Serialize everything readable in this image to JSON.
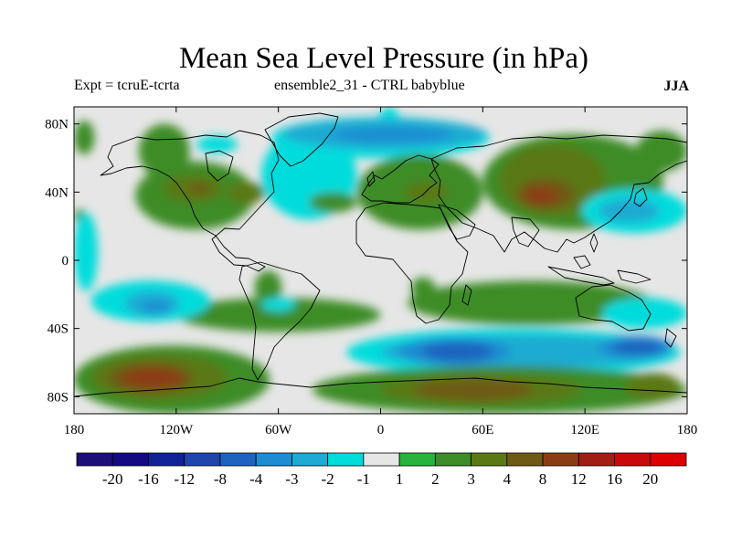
{
  "chart_data": {
    "type": "heatmap",
    "title": "Mean Sea Level Pressure (in hPa)",
    "experiment_label": "Expt = tcruE-tcrta",
    "ensemble_label": "ensemble2_31 - CTRL babyblue",
    "season": "JJA",
    "x_ticks": [
      {
        "lon": -180,
        "label": "180"
      },
      {
        "lon": -120,
        "label": "120W"
      },
      {
        "lon": -60,
        "label": "60W"
      },
      {
        "lon": 0,
        "label": "0"
      },
      {
        "lon": 60,
        "label": "60E"
      },
      {
        "lon": 120,
        "label": "120E"
      },
      {
        "lon": 180,
        "label": "180"
      }
    ],
    "y_ticks": [
      {
        "lat": 80,
        "label": "80N"
      },
      {
        "lat": 40,
        "label": "40N"
      },
      {
        "lat": 0,
        "label": "0"
      },
      {
        "lat": -40,
        "label": "40S"
      },
      {
        "lat": -80,
        "label": "80S"
      }
    ],
    "xlim": [
      -180,
      180
    ],
    "ylim": [
      -90,
      90
    ],
    "colorbar": {
      "labels": [
        "-20",
        "-16",
        "-12",
        "-8",
        "-4",
        "-3",
        "-2",
        "-1",
        "1",
        "2",
        "3",
        "4",
        "8",
        "12",
        "16",
        "20"
      ],
      "colors": [
        "#1e0f78",
        "#140a82",
        "#0f2396",
        "#1e46aa",
        "#1e64be",
        "#1e8cd2",
        "#1eaad2",
        "#00dcdc",
        "#e6e6e6",
        "#28b43c",
        "#3c8c28",
        "#5a7814",
        "#6e5a14",
        "#8c3c14",
        "#a01e14",
        "#c80a0a",
        "#dc0000"
      ]
    },
    "regions": [
      {
        "level": "2",
        "lon": [
          -180,
          -168
        ],
        "lat": [
          62,
          82
        ]
      },
      {
        "level": "2",
        "lon": [
          -180,
          -173
        ],
        "lat": [
          22,
          30
        ]
      },
      {
        "level": "2",
        "lon": [
          -142,
          -112
        ],
        "lat": [
          48,
          80
        ]
      },
      {
        "level": "2",
        "lon": [
          -144,
          -74
        ],
        "lat": [
          18,
          58
        ]
      },
      {
        "level": "3",
        "lon": [
          -128,
          -92
        ],
        "lat": [
          34,
          50
        ]
      },
      {
        "level": "3",
        "lon": [
          -90,
          -68
        ],
        "lat": [
          33,
          46
        ]
      },
      {
        "level": "4",
        "lon": [
          -113,
          -100
        ],
        "lat": [
          39,
          45
        ]
      },
      {
        "level": "-1",
        "lon": [
          -70,
          -14
        ],
        "lat": [
          24,
          76
        ]
      },
      {
        "level": "-1",
        "lon": [
          -2,
          12
        ],
        "lat": [
          66,
          90
        ]
      },
      {
        "level": "-1",
        "lon": [
          -108,
          -84
        ],
        "lat": [
          63,
          73
        ]
      },
      {
        "level": "-1",
        "lon": [
          -64,
          64
        ],
        "lat": [
          60,
          84
        ]
      },
      {
        "level": "-2",
        "lon": [
          -58,
          62
        ],
        "lat": [
          65,
          83
        ]
      },
      {
        "level": "-3",
        "lon": [
          -28,
          42
        ],
        "lat": [
          69,
          78
        ]
      },
      {
        "level": "-1",
        "lon": [
          -50,
          -20
        ],
        "lat": [
          45,
          60
        ]
      },
      {
        "level": "2",
        "lon": [
          -42,
          -14
        ],
        "lat": [
          28,
          40
        ]
      },
      {
        "level": "2",
        "lon": [
          -14,
          60
        ],
        "lat": [
          18,
          62
        ]
      },
      {
        "level": "3",
        "lon": [
          14,
          40
        ],
        "lat": [
          34,
          46
        ]
      },
      {
        "level": "2",
        "lon": [
          60,
          166
        ],
        "lat": [
          18,
          74
        ]
      },
      {
        "level": "3",
        "lon": [
          70,
          132
        ],
        "lat": [
          26,
          68
        ]
      },
      {
        "level": "4",
        "lon": [
          80,
          114
        ],
        "lat": [
          30,
          48
        ]
      },
      {
        "level": "8",
        "lon": [
          84,
          104
        ],
        "lat": [
          33,
          43
        ]
      },
      {
        "level": "2",
        "lon": [
          150,
          180
        ],
        "lat": [
          52,
          76
        ]
      },
      {
        "level": "-1",
        "lon": [
          118,
          180
        ],
        "lat": [
          16,
          42
        ]
      },
      {
        "level": "-2",
        "lon": [
          128,
          164
        ],
        "lat": [
          22,
          36
        ]
      },
      {
        "level": "-1",
        "lon": [
          -180,
          -166
        ],
        "lat": [
          -18,
          28
        ]
      },
      {
        "level": "2",
        "lon": [
          -74,
          -58
        ],
        "lat": [
          -6,
          -26
        ]
      },
      {
        "level": "2",
        "lon": [
          -120,
          0
        ],
        "lat": [
          -22,
          -42
        ]
      },
      {
        "level": "2",
        "lon": [
          16,
          160
        ],
        "lat": [
          -12,
          -38
        ]
      },
      {
        "level": "2",
        "lon": [
          18,
          32
        ],
        "lat": [
          -10,
          -22
        ]
      },
      {
        "level": "-1",
        "lon": [
          -170,
          -100
        ],
        "lat": [
          -12,
          -36
        ]
      },
      {
        "level": "-2",
        "lon": [
          -150,
          -118
        ],
        "lat": [
          -18,
          -33
        ]
      },
      {
        "level": "-3",
        "lon": [
          -140,
          -124
        ],
        "lat": [
          -24,
          -31
        ]
      },
      {
        "level": "-1",
        "lon": [
          -70,
          -50
        ],
        "lat": [
          -22,
          -30
        ]
      },
      {
        "level": "-1",
        "lon": [
          130,
          180
        ],
        "lat": [
          -22,
          -40
        ]
      },
      {
        "level": "-1",
        "lon": [
          -20,
          176
        ],
        "lat": [
          -40,
          -68
        ]
      },
      {
        "level": "-2",
        "lon": [
          0,
          170
        ],
        "lat": [
          -44,
          -63
        ]
      },
      {
        "level": "-3",
        "lon": [
          10,
          76
        ],
        "lat": [
          -45,
          -62
        ]
      },
      {
        "level": "-4",
        "lon": [
          24,
          66
        ],
        "lat": [
          -48,
          -59
        ]
      },
      {
        "level": "-3",
        "lon": [
          128,
          172
        ],
        "lat": [
          -44,
          -58
        ]
      },
      {
        "level": "-4",
        "lon": [
          136,
          166
        ],
        "lat": [
          -47,
          -55
        ]
      },
      {
        "level": "2",
        "lon": [
          -180,
          -65
        ],
        "lat": [
          -50,
          -90
        ]
      },
      {
        "level": "3",
        "lon": [
          -170,
          -90
        ],
        "lat": [
          -55,
          -82
        ]
      },
      {
        "level": "4",
        "lon": [
          -160,
          -110
        ],
        "lat": [
          -60,
          -78
        ]
      },
      {
        "level": "8",
        "lon": [
          -152,
          -116
        ],
        "lat": [
          -63,
          -75
        ]
      },
      {
        "level": "2",
        "lon": [
          -40,
          180
        ],
        "lat": [
          -62,
          -90
        ]
      },
      {
        "level": "3",
        "lon": [
          0,
          118
        ],
        "lat": [
          -67,
          -85
        ]
      },
      {
        "level": "4",
        "lon": [
          20,
          90
        ],
        "lat": [
          -70,
          -82
        ]
      },
      {
        "level": "3",
        "lon": [
          144,
          176
        ],
        "lat": [
          -66,
          -82
        ]
      }
    ]
  }
}
